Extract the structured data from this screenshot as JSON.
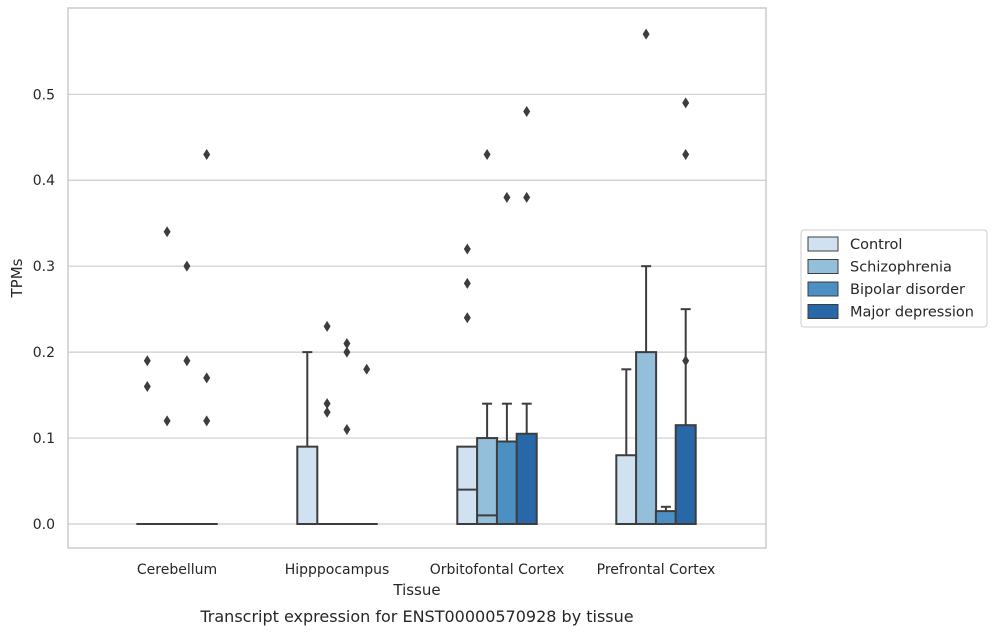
{
  "caption": "Transcript expression for ENST00000570928 by tissue",
  "chart_data": {
    "type": "box",
    "xlabel": "Tissue",
    "ylabel": "TPMs",
    "ylim": [
      -0.028,
      0.6
    ],
    "yticks": [
      "0.0",
      "0.1",
      "0.2",
      "0.3",
      "0.4",
      "0.5"
    ],
    "ytick_values": [
      0,
      0.1,
      0.2,
      0.3,
      0.4,
      0.5
    ],
    "grid": "horizontal",
    "legend_position": "right",
    "categories": [
      "Cerebellum",
      "Hipppocampus",
      "Orbitofontal Cortex",
      "Prefrontal Cortex"
    ],
    "series": [
      {
        "name": "Control",
        "color": "#d0e2f2",
        "boxes": [
          {
            "q1": 0,
            "median": 0,
            "q3": 0,
            "whislo": 0,
            "whishi": 0,
            "fliers": [
              0.19,
              0.16
            ]
          },
          {
            "q1": 0,
            "median": 0,
            "q3": 0.09,
            "whislo": 0,
            "whishi": 0.2,
            "fliers": []
          },
          {
            "q1": 0,
            "median": 0.04,
            "q3": 0.09,
            "whislo": 0,
            "whishi": 0.09,
            "fliers": [
              0.32,
              0.28,
              0.24
            ]
          },
          {
            "q1": 0,
            "median": 0,
            "q3": 0.08,
            "whislo": 0,
            "whishi": 0.18,
            "fliers": []
          }
        ]
      },
      {
        "name": "Schizophrenia",
        "color": "#94bfda",
        "boxes": [
          {
            "q1": 0,
            "median": 0,
            "q3": 0,
            "whislo": 0,
            "whishi": 0,
            "fliers": [
              0.34,
              0.12
            ]
          },
          {
            "q1": 0,
            "median": 0,
            "q3": 0,
            "whislo": 0,
            "whishi": 0,
            "fliers": [
              0.23,
              0.14,
              0.13
            ]
          },
          {
            "q1": 0,
            "median": 0.01,
            "q3": 0.1,
            "whislo": 0,
            "whishi": 0.14,
            "fliers": [
              0.43
            ]
          },
          {
            "q1": 0,
            "median": 0,
            "q3": 0.2,
            "whislo": 0,
            "whishi": 0.3,
            "fliers": [
              0.57
            ]
          }
        ]
      },
      {
        "name": "Bipolar disorder",
        "color": "#4b8fc3",
        "boxes": [
          {
            "q1": 0,
            "median": 0,
            "q3": 0,
            "whislo": 0,
            "whishi": 0,
            "fliers": [
              0.3,
              0.19
            ]
          },
          {
            "q1": 0,
            "median": 0,
            "q3": 0,
            "whislo": 0,
            "whishi": 0,
            "fliers": [
              0.21,
              0.2,
              0.11
            ]
          },
          {
            "q1": 0,
            "median": 0,
            "q3": 0.096,
            "whislo": 0,
            "whishi": 0.14,
            "fliers": [
              0.38
            ]
          },
          {
            "q1": 0,
            "median": 0,
            "q3": 0.015,
            "whislo": 0,
            "whishi": 0.02,
            "fliers": []
          }
        ]
      },
      {
        "name": "Major depression",
        "color": "#2868a8",
        "boxes": [
          {
            "q1": 0,
            "median": 0,
            "q3": 0,
            "whislo": 0,
            "whishi": 0,
            "fliers": [
              0.43,
              0.17,
              0.12
            ]
          },
          {
            "q1": 0,
            "median": 0,
            "q3": 0,
            "whislo": 0,
            "whishi": 0,
            "fliers": [
              0.18
            ]
          },
          {
            "q1": 0,
            "median": 0,
            "q3": 0.105,
            "whislo": 0,
            "whishi": 0.14,
            "fliers": [
              0.48,
              0.38
            ]
          },
          {
            "q1": 0,
            "median": 0,
            "q3": 0.115,
            "whislo": 0,
            "whishi": 0.25,
            "fliers": [
              0.49,
              0.43,
              0.19
            ]
          }
        ]
      }
    ]
  }
}
